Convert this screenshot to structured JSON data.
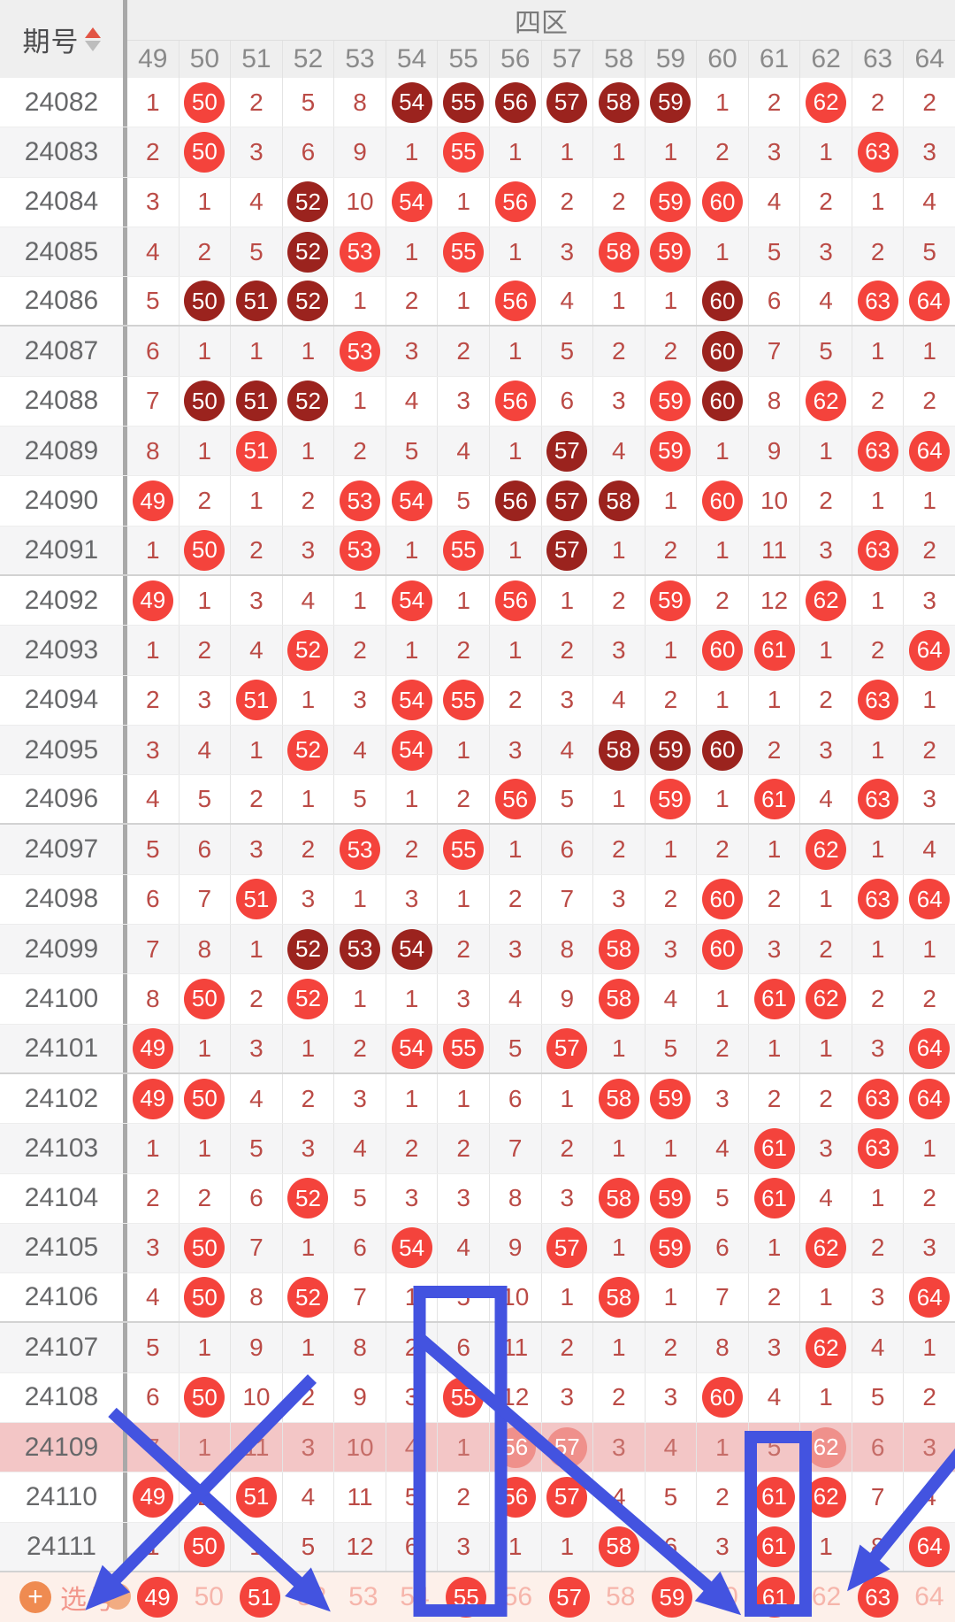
{
  "header": {
    "period_label": "期号",
    "zone_label": "四区"
  },
  "table": {
    "columns": [
      "49",
      "50",
      "51",
      "52",
      "53",
      "54",
      "55",
      "56",
      "57",
      "58",
      "59",
      "60",
      "61",
      "62",
      "63",
      "64"
    ],
    "cell_encoding": "plain = omission count; o## = drawn ball (light red); d## = drawn ball (dark red); f## = drawn ball (faded, highlighted row)",
    "rows": [
      {
        "period": "24082",
        "cells": [
          "1",
          "o50",
          "2",
          "5",
          "8",
          "d54",
          "d55",
          "d56",
          "d57",
          "d58",
          "d59",
          "1",
          "2",
          "o62",
          "2",
          "2"
        ]
      },
      {
        "period": "24083",
        "cells": [
          "2",
          "o50",
          "3",
          "6",
          "9",
          "1",
          "o55",
          "1",
          "1",
          "1",
          "1",
          "2",
          "3",
          "1",
          "o63",
          "3"
        ]
      },
      {
        "period": "24084",
        "cells": [
          "3",
          "1",
          "4",
          "d52",
          "10",
          "o54",
          "1",
          "o56",
          "2",
          "2",
          "o59",
          "o60",
          "4",
          "2",
          "1",
          "4"
        ]
      },
      {
        "period": "24085",
        "cells": [
          "4",
          "2",
          "5",
          "d52",
          "o53",
          "1",
          "o55",
          "1",
          "3",
          "o58",
          "o59",
          "1",
          "5",
          "3",
          "2",
          "5"
        ]
      },
      {
        "period": "24086",
        "cells": [
          "5",
          "d50",
          "d51",
          "d52",
          "1",
          "2",
          "1",
          "o56",
          "4",
          "1",
          "1",
          "d60",
          "6",
          "4",
          "o63",
          "o64"
        ]
      },
      {
        "period": "24087",
        "cells": [
          "6",
          "1",
          "1",
          "1",
          "o53",
          "3",
          "2",
          "1",
          "5",
          "2",
          "2",
          "d60",
          "7",
          "5",
          "1",
          "1"
        ]
      },
      {
        "period": "24088",
        "cells": [
          "7",
          "d50",
          "d51",
          "d52",
          "1",
          "4",
          "3",
          "o56",
          "6",
          "3",
          "o59",
          "d60",
          "8",
          "o62",
          "2",
          "2"
        ]
      },
      {
        "period": "24089",
        "cells": [
          "8",
          "1",
          "o51",
          "1",
          "2",
          "5",
          "4",
          "1",
          "d57",
          "4",
          "o59",
          "1",
          "9",
          "1",
          "o63",
          "o64"
        ]
      },
      {
        "period": "24090",
        "cells": [
          "o49",
          "2",
          "1",
          "2",
          "o53",
          "o54",
          "5",
          "d56",
          "d57",
          "d58",
          "1",
          "o60",
          "10",
          "2",
          "1",
          "1"
        ]
      },
      {
        "period": "24091",
        "cells": [
          "1",
          "o50",
          "2",
          "3",
          "o53",
          "1",
          "o55",
          "1",
          "d57",
          "1",
          "2",
          "1",
          "11",
          "3",
          "o63",
          "2"
        ]
      },
      {
        "period": "24092",
        "cells": [
          "o49",
          "1",
          "3",
          "4",
          "1",
          "o54",
          "1",
          "o56",
          "1",
          "2",
          "o59",
          "2",
          "12",
          "o62",
          "1",
          "3"
        ]
      },
      {
        "period": "24093",
        "cells": [
          "1",
          "2",
          "4",
          "o52",
          "2",
          "1",
          "2",
          "1",
          "2",
          "3",
          "1",
          "o60",
          "o61",
          "1",
          "2",
          "o64"
        ]
      },
      {
        "period": "24094",
        "cells": [
          "2",
          "3",
          "o51",
          "1",
          "3",
          "o54",
          "o55",
          "2",
          "3",
          "4",
          "2",
          "1",
          "1",
          "2",
          "o63",
          "1"
        ]
      },
      {
        "period": "24095",
        "cells": [
          "3",
          "4",
          "1",
          "o52",
          "4",
          "o54",
          "1",
          "3",
          "4",
          "d58",
          "d59",
          "d60",
          "2",
          "3",
          "1",
          "2"
        ]
      },
      {
        "period": "24096",
        "cells": [
          "4",
          "5",
          "2",
          "1",
          "5",
          "1",
          "2",
          "o56",
          "5",
          "1",
          "o59",
          "1",
          "o61",
          "4",
          "o63",
          "3"
        ]
      },
      {
        "period": "24097",
        "cells": [
          "5",
          "6",
          "3",
          "2",
          "o53",
          "2",
          "o55",
          "1",
          "6",
          "2",
          "1",
          "2",
          "1",
          "o62",
          "1",
          "4"
        ]
      },
      {
        "period": "24098",
        "cells": [
          "6",
          "7",
          "o51",
          "3",
          "1",
          "3",
          "1",
          "2",
          "7",
          "3",
          "2",
          "o60",
          "2",
          "1",
          "o63",
          "o64"
        ]
      },
      {
        "period": "24099",
        "cells": [
          "7",
          "8",
          "1",
          "d52",
          "d53",
          "d54",
          "2",
          "3",
          "8",
          "o58",
          "3",
          "o60",
          "3",
          "2",
          "1",
          "1"
        ]
      },
      {
        "period": "24100",
        "cells": [
          "8",
          "o50",
          "2",
          "o52",
          "1",
          "1",
          "3",
          "4",
          "9",
          "o58",
          "4",
          "1",
          "o61",
          "o62",
          "2",
          "2"
        ]
      },
      {
        "period": "24101",
        "cells": [
          "o49",
          "1",
          "3",
          "1",
          "2",
          "o54",
          "o55",
          "5",
          "o57",
          "1",
          "5",
          "2",
          "1",
          "1",
          "3",
          "o64"
        ]
      },
      {
        "period": "24102",
        "cells": [
          "o49",
          "o50",
          "4",
          "2",
          "3",
          "1",
          "1",
          "6",
          "1",
          "o58",
          "o59",
          "3",
          "2",
          "2",
          "o63",
          "o64"
        ]
      },
      {
        "period": "24103",
        "cells": [
          "1",
          "1",
          "5",
          "3",
          "4",
          "2",
          "2",
          "7",
          "2",
          "1",
          "1",
          "4",
          "o61",
          "3",
          "o63",
          "1"
        ]
      },
      {
        "period": "24104",
        "cells": [
          "2",
          "2",
          "6",
          "o52",
          "5",
          "3",
          "3",
          "8",
          "3",
          "o58",
          "o59",
          "5",
          "o61",
          "4",
          "1",
          "2"
        ]
      },
      {
        "period": "24105",
        "cells": [
          "3",
          "o50",
          "7",
          "1",
          "6",
          "o54",
          "4",
          "9",
          "o57",
          "1",
          "o59",
          "6",
          "1",
          "o62",
          "2",
          "3"
        ]
      },
      {
        "period": "24106",
        "cells": [
          "4",
          "o50",
          "8",
          "o52",
          "7",
          "1",
          "5",
          "10",
          "1",
          "o58",
          "1",
          "7",
          "2",
          "1",
          "3",
          "o64"
        ]
      },
      {
        "period": "24107",
        "cells": [
          "5",
          "1",
          "9",
          "1",
          "8",
          "2",
          "6",
          "11",
          "2",
          "1",
          "2",
          "8",
          "3",
          "o62",
          "4",
          "1"
        ]
      },
      {
        "period": "24108",
        "cells": [
          "6",
          "o50",
          "10",
          "2",
          "9",
          "3",
          "o55",
          "12",
          "3",
          "2",
          "3",
          "o60",
          "4",
          "1",
          "5",
          "2"
        ]
      },
      {
        "period": "24109",
        "highlight": true,
        "cells": [
          "7",
          "1",
          "11",
          "3",
          "10",
          "4",
          "1",
          "f56",
          "f57",
          "3",
          "4",
          "1",
          "5",
          "f62",
          "6",
          "3"
        ]
      },
      {
        "period": "24110",
        "cells": [
          "o49",
          "2",
          "o51",
          "4",
          "11",
          "5",
          "2",
          "o56",
          "o57",
          "4",
          "5",
          "2",
          "o61",
          "o62",
          "7",
          "4"
        ]
      },
      {
        "period": "24111",
        "cells": [
          "1",
          "o50",
          "1",
          "5",
          "12",
          "6",
          "3",
          "1",
          "1",
          "o58",
          "6",
          "3",
          "o61",
          "1",
          "8",
          "o64"
        ]
      }
    ]
  },
  "footer": {
    "label": "选号",
    "plus_icon": "plus-circle-icon",
    "numbers": [
      {
        "n": "49",
        "selected": true
      },
      {
        "n": "50",
        "selected": false
      },
      {
        "n": "51",
        "selected": true
      },
      {
        "n": "52",
        "selected": false
      },
      {
        "n": "53",
        "selected": false
      },
      {
        "n": "54",
        "selected": false
      },
      {
        "n": "55",
        "selected": true
      },
      {
        "n": "56",
        "selected": false
      },
      {
        "n": "57",
        "selected": true
      },
      {
        "n": "58",
        "selected": false
      },
      {
        "n": "59",
        "selected": true
      },
      {
        "n": "60",
        "selected": false
      },
      {
        "n": "61",
        "selected": true
      },
      {
        "n": "62",
        "selected": false
      },
      {
        "n": "63",
        "selected": true
      },
      {
        "n": "64",
        "selected": false
      }
    ]
  },
  "colors": {
    "ball_drawn": "#f4433c",
    "ball_drawn_dark": "#9b231e",
    "ball_faded": "#ef908b",
    "highlight_row_bg": "#f3c6c6",
    "footer_bg": "#fdf0ea",
    "annotation_blue": "#4353e0"
  },
  "annotations": {
    "marks": [
      "box-over-column-55",
      "box-over-column-61",
      "x-cross-bottom-left",
      "long-diagonal-arrow-to-bottom",
      "diagonal-arrow-from-right-edge-to-63"
    ]
  }
}
